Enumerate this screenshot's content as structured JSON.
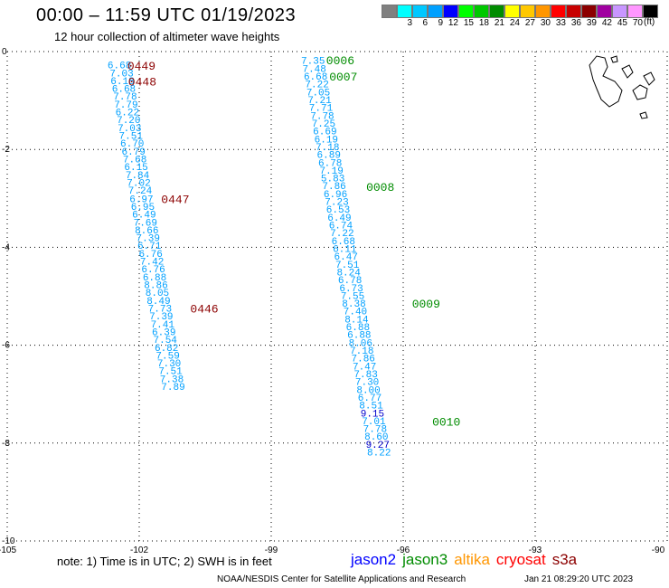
{
  "header": {
    "title": "00:00 – 11:59 UTC 01/19/2023",
    "subtitle": "12 hour collection of altimeter wave heights"
  },
  "colorbar": {
    "unit": "(ft)",
    "stops": [
      {
        "label": "",
        "color": "#808080"
      },
      {
        "label": "3",
        "color": "#00ffff"
      },
      {
        "label": "6",
        "color": "#00c8ff"
      },
      {
        "label": "9",
        "color": "#00a0ff"
      },
      {
        "label": "12",
        "color": "#0000ff"
      },
      {
        "label": "15",
        "color": "#00ff00"
      },
      {
        "label": "18",
        "color": "#00c800"
      },
      {
        "label": "21",
        "color": "#008c00"
      },
      {
        "label": "24",
        "color": "#ffff00"
      },
      {
        "label": "27",
        "color": "#ffc800"
      },
      {
        "label": "30",
        "color": "#ff9600"
      },
      {
        "label": "33",
        "color": "#ff0000"
      },
      {
        "label": "36",
        "color": "#c80000"
      },
      {
        "label": "39",
        "color": "#8c0000"
      },
      {
        "label": "42",
        "color": "#a000a0"
      },
      {
        "label": "45",
        "color": "#c896ff"
      },
      {
        "label": "70",
        "color": "#ff96ff"
      },
      {
        "label": "",
        "color": "#000000"
      }
    ]
  },
  "chart_data": {
    "type": "scatter",
    "xlim": [
      -105,
      -90
    ],
    "ylim": [
      -10,
      0
    ],
    "x_ticks": [
      "-105",
      "-102",
      "-99",
      "-96",
      "-93",
      "-90"
    ],
    "y_ticks": [
      "0",
      "-2",
      "-4",
      "-6",
      "-8",
      "-10"
    ],
    "grid": true,
    "colors": {
      "value": "#00a0ff",
      "value_dark": "#0000cc",
      "time_s3a": "#8c0000",
      "time_jason3": "#008c00"
    },
    "series": [
      {
        "name": "s3a",
        "points": [
          {
            "x": -102.45,
            "y": -0.27,
            "v": "6.68"
          },
          {
            "x": -102.4,
            "y": -0.43,
            "v": "7.03"
          },
          {
            "x": -102.38,
            "y": -0.59,
            "v": "6.18"
          },
          {
            "x": -102.35,
            "y": -0.75,
            "v": "6.68"
          },
          {
            "x": -102.32,
            "y": -0.91,
            "v": "7.78"
          },
          {
            "x": -102.3,
            "y": -1.07,
            "v": "7.79"
          },
          {
            "x": -102.27,
            "y": -1.23,
            "v": "6.22"
          },
          {
            "x": -102.24,
            "y": -1.39,
            "v": "7.20"
          },
          {
            "x": -102.22,
            "y": -1.55,
            "v": "7.03"
          },
          {
            "x": -102.19,
            "y": -1.71,
            "v": "7.51"
          },
          {
            "x": -102.16,
            "y": -1.87,
            "v": "6.70"
          },
          {
            "x": -102.13,
            "y": -2.03,
            "v": "6.79"
          },
          {
            "x": -102.1,
            "y": -2.19,
            "v": "7.68"
          },
          {
            "x": -102.07,
            "y": -2.35,
            "v": "6.15"
          },
          {
            "x": -102.04,
            "y": -2.51,
            "v": "7.84"
          },
          {
            "x": -102.01,
            "y": -2.67,
            "v": "7.02"
          },
          {
            "x": -101.98,
            "y": -2.83,
            "v": "7.24"
          },
          {
            "x": -101.95,
            "y": -3.0,
            "v": "6.97"
          },
          {
            "x": -101.92,
            "y": -3.16,
            "v": "6.95"
          },
          {
            "x": -101.89,
            "y": -3.32,
            "v": "6.49"
          },
          {
            "x": -101.86,
            "y": -3.48,
            "v": "7.69"
          },
          {
            "x": -101.83,
            "y": -3.64,
            "v": "8.66"
          },
          {
            "x": -101.8,
            "y": -3.8,
            "v": "7.39"
          },
          {
            "x": -101.77,
            "y": -3.96,
            "v": "6.71"
          },
          {
            "x": -101.74,
            "y": -4.12,
            "v": "6.76"
          },
          {
            "x": -101.71,
            "y": -4.28,
            "v": "7.42"
          },
          {
            "x": -101.68,
            "y": -4.44,
            "v": "6.76"
          },
          {
            "x": -101.65,
            "y": -4.6,
            "v": "6.88"
          },
          {
            "x": -101.62,
            "y": -4.76,
            "v": "8.86"
          },
          {
            "x": -101.59,
            "y": -4.92,
            "v": "8.05"
          },
          {
            "x": -101.56,
            "y": -5.08,
            "v": "8.49"
          },
          {
            "x": -101.53,
            "y": -5.24,
            "v": "7.73"
          },
          {
            "x": -101.5,
            "y": -5.4,
            "v": "7.39"
          },
          {
            "x": -101.47,
            "y": -5.56,
            "v": "7.41"
          },
          {
            "x": -101.44,
            "y": -5.72,
            "v": "6.39"
          },
          {
            "x": -101.41,
            "y": -5.88,
            "v": "7.54"
          },
          {
            "x": -101.38,
            "y": -6.04,
            "v": "6.82"
          },
          {
            "x": -101.35,
            "y": -6.2,
            "v": "7.59"
          },
          {
            "x": -101.32,
            "y": -6.36,
            "v": "7.30"
          },
          {
            "x": -101.29,
            "y": -6.52,
            "v": "7.51"
          },
          {
            "x": -101.26,
            "y": -6.68,
            "v": "7.38"
          },
          {
            "x": -101.23,
            "y": -6.84,
            "v": "7.89"
          }
        ]
      },
      {
        "name": "jason3",
        "points": [
          {
            "x": -98.05,
            "y": -0.18,
            "v": "7.35"
          },
          {
            "x": -98.02,
            "y": -0.34,
            "v": "7.48"
          },
          {
            "x": -97.99,
            "y": -0.5,
            "v": "6.68"
          },
          {
            "x": -97.96,
            "y": -0.66,
            "v": "7.22"
          },
          {
            "x": -97.93,
            "y": -0.82,
            "v": "7.05"
          },
          {
            "x": -97.9,
            "y": -0.98,
            "v": "7.21"
          },
          {
            "x": -97.87,
            "y": -1.14,
            "v": "7.71"
          },
          {
            "x": -97.84,
            "y": -1.3,
            "v": "7.78"
          },
          {
            "x": -97.81,
            "y": -1.46,
            "v": "7.25"
          },
          {
            "x": -97.78,
            "y": -1.62,
            "v": "6.69"
          },
          {
            "x": -97.75,
            "y": -1.78,
            "v": "6.19"
          },
          {
            "x": -97.72,
            "y": -1.94,
            "v": "7.18"
          },
          {
            "x": -97.69,
            "y": -2.1,
            "v": "6.89"
          },
          {
            "x": -97.66,
            "y": -2.26,
            "v": "6.78"
          },
          {
            "x": -97.63,
            "y": -2.42,
            "v": "7.19"
          },
          {
            "x": -97.6,
            "y": -2.58,
            "v": "5.83"
          },
          {
            "x": -97.57,
            "y": -2.74,
            "v": "7.86"
          },
          {
            "x": -97.54,
            "y": -2.9,
            "v": "6.96"
          },
          {
            "x": -97.51,
            "y": -3.06,
            "v": "7.23"
          },
          {
            "x": -97.48,
            "y": -3.22,
            "v": "6.53"
          },
          {
            "x": -97.45,
            "y": -3.38,
            "v": "6.49"
          },
          {
            "x": -97.42,
            "y": -3.54,
            "v": "6.74"
          },
          {
            "x": -97.39,
            "y": -3.7,
            "v": "7.22"
          },
          {
            "x": -97.36,
            "y": -3.86,
            "v": "6.68"
          },
          {
            "x": -97.33,
            "y": -4.02,
            "v": "6.11"
          },
          {
            "x": -97.3,
            "y": -4.18,
            "v": "6.47"
          },
          {
            "x": -97.27,
            "y": -4.34,
            "v": "7.51"
          },
          {
            "x": -97.24,
            "y": -4.5,
            "v": "8.24"
          },
          {
            "x": -97.21,
            "y": -4.66,
            "v": "6.78"
          },
          {
            "x": -97.18,
            "y": -4.82,
            "v": "6.73"
          },
          {
            "x": -97.15,
            "y": -4.98,
            "v": "7.55"
          },
          {
            "x": -97.12,
            "y": -5.14,
            "v": "8.38"
          },
          {
            "x": -97.09,
            "y": -5.3,
            "v": "7.40"
          },
          {
            "x": -97.06,
            "y": -5.46,
            "v": "8.14"
          },
          {
            "x": -97.03,
            "y": -5.62,
            "v": "6.88"
          },
          {
            "x": -97.0,
            "y": -5.78,
            "v": "6.88"
          },
          {
            "x": -96.97,
            "y": -5.94,
            "v": "8.06"
          },
          {
            "x": -96.94,
            "y": -6.1,
            "v": "7.18"
          },
          {
            "x": -96.91,
            "y": -6.26,
            "v": "7.86"
          },
          {
            "x": -96.88,
            "y": -6.42,
            "v": "7.47"
          },
          {
            "x": -96.85,
            "y": -6.58,
            "v": "7.83"
          },
          {
            "x": -96.82,
            "y": -6.74,
            "v": "7.30"
          },
          {
            "x": -96.79,
            "y": -6.9,
            "v": "8.00"
          },
          {
            "x": -96.76,
            "y": -7.06,
            "v": "6.77"
          },
          {
            "x": -96.73,
            "y": -7.22,
            "v": "8.51"
          },
          {
            "x": -96.7,
            "y": -7.38,
            "v": "9.15",
            "dark": true
          },
          {
            "x": -96.67,
            "y": -7.54,
            "v": "7.01"
          },
          {
            "x": -96.64,
            "y": -7.7,
            "v": "7.78"
          },
          {
            "x": -96.61,
            "y": -7.86,
            "v": "8.60"
          },
          {
            "x": -96.58,
            "y": -8.02,
            "v": "9.27",
            "dark": true
          },
          {
            "x": -96.55,
            "y": -8.18,
            "v": "8.22"
          }
        ]
      }
    ],
    "time_labels": [
      {
        "x": -101.95,
        "y": -0.28,
        "t": "0449",
        "sat": "s3a"
      },
      {
        "x": -101.93,
        "y": -0.6,
        "t": "0448",
        "sat": "s3a"
      },
      {
        "x": -101.18,
        "y": -3.0,
        "t": "0447",
        "sat": "s3a"
      },
      {
        "x": -100.52,
        "y": -5.24,
        "t": "0446",
        "sat": "s3a"
      },
      {
        "x": -97.43,
        "y": -0.17,
        "t": "0006",
        "sat": "jason3"
      },
      {
        "x": -97.36,
        "y": -0.5,
        "t": "0007",
        "sat": "jason3"
      },
      {
        "x": -96.52,
        "y": -2.75,
        "t": "0008",
        "sat": "jason3"
      },
      {
        "x": -95.48,
        "y": -5.14,
        "t": "0009",
        "sat": "jason3"
      },
      {
        "x": -95.02,
        "y": -7.55,
        "t": "0010",
        "sat": "jason3"
      }
    ]
  },
  "footer": {
    "note": "note:  1) Time is in UTC;  2) SWH is in feet",
    "satellites": [
      {
        "label": "jason2",
        "color": "#0000ff"
      },
      {
        "label": "jason3",
        "color": "#008c00"
      },
      {
        "label": "altika",
        "color": "#ff9600"
      },
      {
        "label": "cryosat",
        "color": "#ff0000"
      },
      {
        "label": "s3a",
        "color": "#8c0000"
      }
    ],
    "credit": "NOAA/NESDIS Center for Satellite Applications and Research",
    "timestamp": "Jan 21 08:29:20 UTC 2023"
  }
}
